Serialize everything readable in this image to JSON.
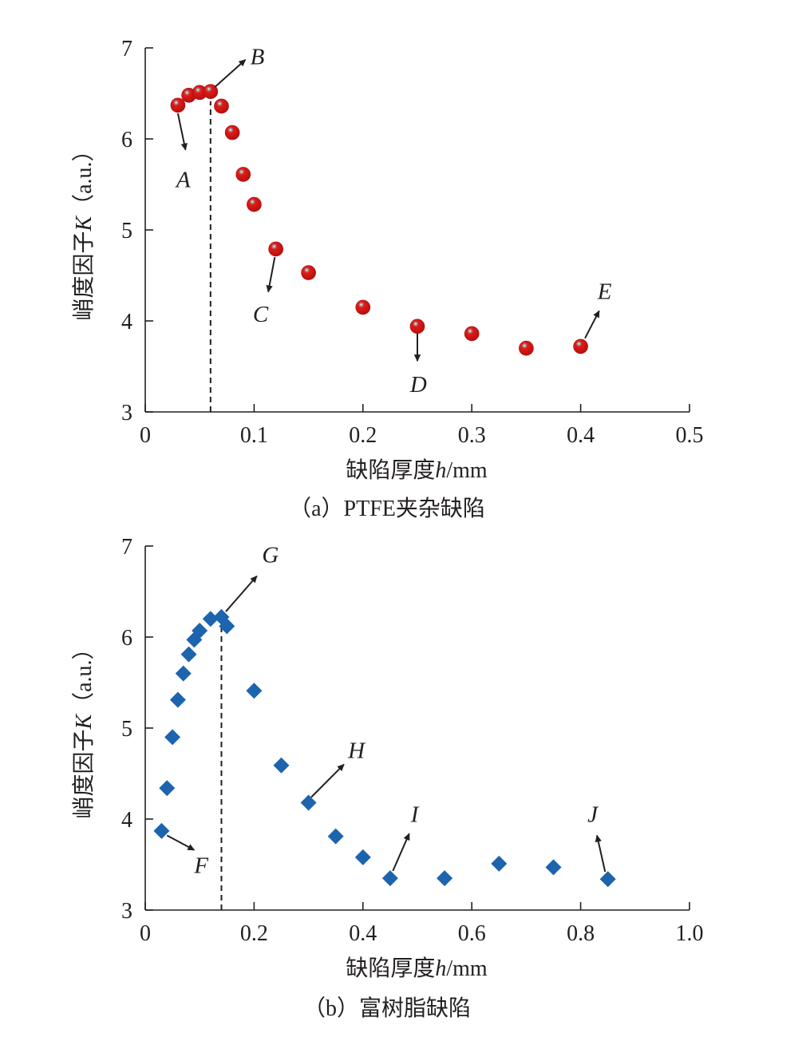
{
  "colors": {
    "series_a": "#e8211c",
    "series_b": "#1c64ae",
    "axis": "#231f20"
  },
  "chart_data": [
    {
      "type": "scatter",
      "caption": "（a）PTFE夹杂缺陷",
      "ylabel_main": "峭度因子",
      "ylabel_var": "K",
      "ylabel_unit": "（a.u.）",
      "xlabel_main": "缺陷厚度",
      "xlabel_var": "h",
      "xlabel_unit": "/mm",
      "xlim": [
        0,
        0.5
      ],
      "ylim": [
        3,
        7
      ],
      "xticks": [
        "0",
        "0.1",
        "0.2",
        "0.3",
        "0.4",
        "0.5"
      ],
      "yticks": [
        "3",
        "4",
        "5",
        "6",
        "7"
      ],
      "marker": "sphere",
      "grid": false,
      "peak_line_x": 0.06,
      "points": [
        {
          "x": 0.03,
          "y": 6.37
        },
        {
          "x": 0.04,
          "y": 6.48
        },
        {
          "x": 0.05,
          "y": 6.51
        },
        {
          "x": 0.06,
          "y": 6.52
        },
        {
          "x": 0.07,
          "y": 6.36
        },
        {
          "x": 0.08,
          "y": 6.07
        },
        {
          "x": 0.09,
          "y": 5.61
        },
        {
          "x": 0.1,
          "y": 5.28
        },
        {
          "x": 0.12,
          "y": 4.79
        },
        {
          "x": 0.15,
          "y": 4.53
        },
        {
          "x": 0.2,
          "y": 4.15
        },
        {
          "x": 0.25,
          "y": 3.94
        },
        {
          "x": 0.3,
          "y": 3.86
        },
        {
          "x": 0.35,
          "y": 3.7
        },
        {
          "x": 0.4,
          "y": 3.72
        }
      ],
      "annotations": [
        {
          "label": "A",
          "from": [
            0.03,
            6.28
          ],
          "to": [
            0.037,
            5.88
          ],
          "text_at": [
            0.035,
            5.47
          ]
        },
        {
          "label": "B",
          "from": [
            0.064,
            6.57
          ],
          "to": [
            0.092,
            6.87
          ],
          "text_at": [
            0.103,
            6.82
          ]
        },
        {
          "label": "C",
          "from": [
            0.119,
            4.7
          ],
          "to": [
            0.113,
            4.32
          ],
          "text_at": [
            0.106,
            3.99
          ]
        },
        {
          "label": "D",
          "from": [
            0.25,
            3.86
          ],
          "to": [
            0.25,
            3.56
          ],
          "text_at": [
            0.251,
            3.22
          ]
        },
        {
          "label": "E",
          "from": [
            0.404,
            3.81
          ],
          "to": [
            0.417,
            4.11
          ],
          "text_at": [
            0.422,
            4.24
          ]
        }
      ]
    },
    {
      "type": "scatter",
      "caption": "（b）富树脂缺陷",
      "ylabel_main": "峭度因子",
      "ylabel_var": "K",
      "ylabel_unit": "（a.u.）",
      "xlabel_main": "缺陷厚度",
      "xlabel_var": "h",
      "xlabel_unit": "/mm",
      "xlim": [
        0,
        1.0
      ],
      "ylim": [
        3,
        7
      ],
      "xticks": [
        "0",
        "0.2",
        "0.4",
        "0.6",
        "0.8",
        "1.0"
      ],
      "yticks": [
        "3",
        "4",
        "5",
        "6",
        "7"
      ],
      "marker": "diamond",
      "grid": false,
      "peak_line_x": 0.14,
      "points": [
        {
          "x": 0.03,
          "y": 3.87
        },
        {
          "x": 0.04,
          "y": 4.34
        },
        {
          "x": 0.05,
          "y": 4.9
        },
        {
          "x": 0.06,
          "y": 5.31
        },
        {
          "x": 0.07,
          "y": 5.6
        },
        {
          "x": 0.08,
          "y": 5.81
        },
        {
          "x": 0.09,
          "y": 5.97
        },
        {
          "x": 0.1,
          "y": 6.07
        },
        {
          "x": 0.12,
          "y": 6.2
        },
        {
          "x": 0.14,
          "y": 6.22
        },
        {
          "x": 0.15,
          "y": 6.12
        },
        {
          "x": 0.2,
          "y": 5.41
        },
        {
          "x": 0.25,
          "y": 4.59
        },
        {
          "x": 0.3,
          "y": 4.18
        },
        {
          "x": 0.35,
          "y": 3.81
        },
        {
          "x": 0.4,
          "y": 3.58
        },
        {
          "x": 0.45,
          "y": 3.35
        },
        {
          "x": 0.55,
          "y": 3.35
        },
        {
          "x": 0.65,
          "y": 3.51
        },
        {
          "x": 0.75,
          "y": 3.47
        },
        {
          "x": 0.85,
          "y": 3.34
        }
      ],
      "annotations": [
        {
          "label": "F",
          "from": [
            0.04,
            3.82
          ],
          "to": [
            0.09,
            3.66
          ],
          "text_at": [
            0.103,
            3.41
          ]
        },
        {
          "label": "G",
          "from": [
            0.148,
            6.28
          ],
          "to": [
            0.205,
            6.67
          ],
          "text_at": [
            0.23,
            6.82
          ]
        },
        {
          "label": "H",
          "from": [
            0.305,
            4.24
          ],
          "to": [
            0.365,
            4.6
          ],
          "text_at": [
            0.388,
            4.67
          ]
        },
        {
          "label": "I",
          "from": [
            0.455,
            3.43
          ],
          "to": [
            0.485,
            3.84
          ],
          "text_at": [
            0.495,
            3.97
          ]
        },
        {
          "label": "J",
          "from": [
            0.845,
            3.42
          ],
          "to": [
            0.83,
            3.82
          ],
          "text_at": [
            0.822,
            3.97
          ]
        }
      ]
    }
  ]
}
